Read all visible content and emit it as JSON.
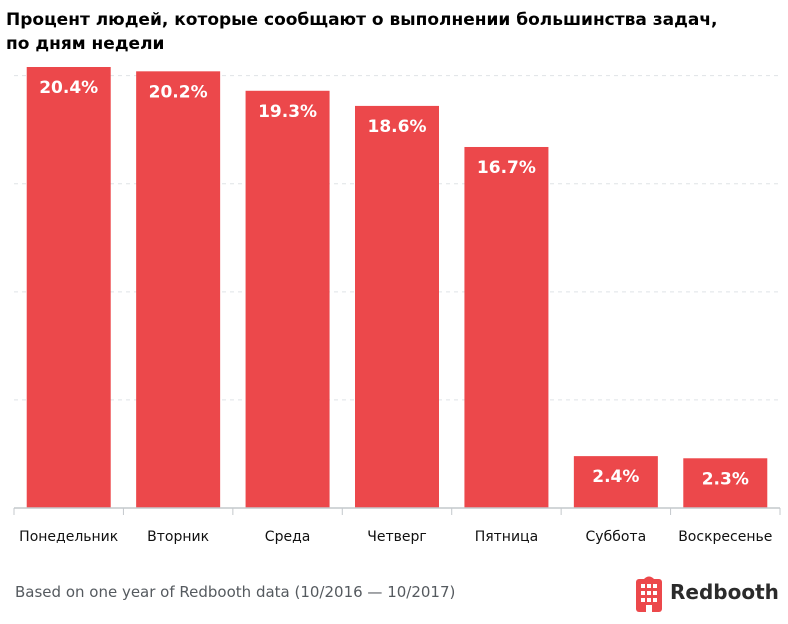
{
  "chart_data": {
    "type": "bar",
    "title_lines": [
      "Процент людей, которые сообщают о выполнении большинства задач,",
      "по дням недели"
    ],
    "categories": [
      "Понедельник",
      "Вторник",
      "Среда",
      "Четверг",
      "Пятница",
      "Суббота",
      "Воскресенье"
    ],
    "values": [
      20.4,
      20.2,
      19.3,
      18.6,
      16.7,
      2.4,
      2.3
    ],
    "value_labels": [
      "20.4%",
      "20.2%",
      "19.3%",
      "18.6%",
      "16.7%",
      "2.4%",
      "2.3%"
    ],
    "unit": "%",
    "ylim": [
      0,
      20
    ],
    "grid": true,
    "xlabel": "",
    "ylabel": "",
    "bar_color": "#ec484b"
  },
  "footer": {
    "source": "Based on one year of Redbooth data (10/2016 — 10/2017)"
  },
  "brand": {
    "name": "Redbooth",
    "icon": "redbooth-logo-icon",
    "color": "#ec484b"
  }
}
